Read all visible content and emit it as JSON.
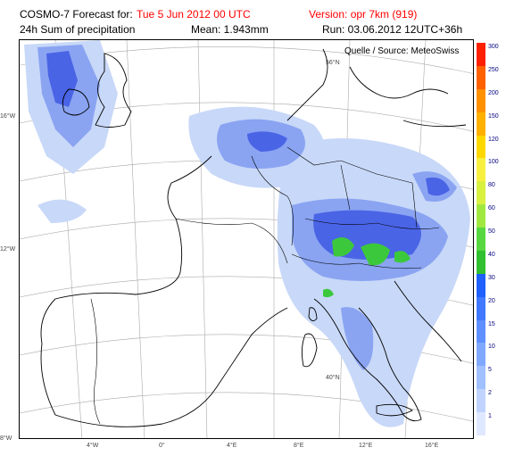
{
  "header": {
    "title_prefix": "COSMO-7 Forecast for:",
    "forecast_date": "Tue 5 Jun 2012 00 UTC",
    "version": "Version: opr 7km (919)",
    "field": "24h Sum of precipitation",
    "mean": "Mean: 1.943mm",
    "run": "Run: 03.06.2012 12UTC+36h"
  },
  "map": {
    "source": "Quelle / Source: MeteoSwiss",
    "lon_labels": [
      "4°W",
      "0°",
      "4°E",
      "8°E",
      "12°E",
      "16°E"
    ],
    "lat_labels_left": [
      "16°W",
      "12°W",
      "8°W"
    ],
    "inner_labels": [
      "56°N",
      "40°N"
    ],
    "precip_color_light": "#c8d8f8",
    "precip_color_mid": "#6e8cf0",
    "precip_color_dark": "#3050e0",
    "precip_color_green": "#40d040"
  },
  "legend": {
    "values": [
      "300",
      "250",
      "200",
      "150",
      "120",
      "100",
      "80",
      "60",
      "50",
      "40",
      "30",
      "20",
      "15",
      "10",
      "5",
      "2",
      "1"
    ],
    "colors": [
      "#ff2000",
      "#ff6000",
      "#ff9000",
      "#ffb000",
      "#ffd800",
      "#f8f040",
      "#d8f040",
      "#a0e840",
      "#58d840",
      "#30c030",
      "#2060ff",
      "#4078ff",
      "#6090ff",
      "#80a8ff",
      "#a0c0ff",
      "#c0d4ff",
      "#e0e8ff"
    ]
  }
}
